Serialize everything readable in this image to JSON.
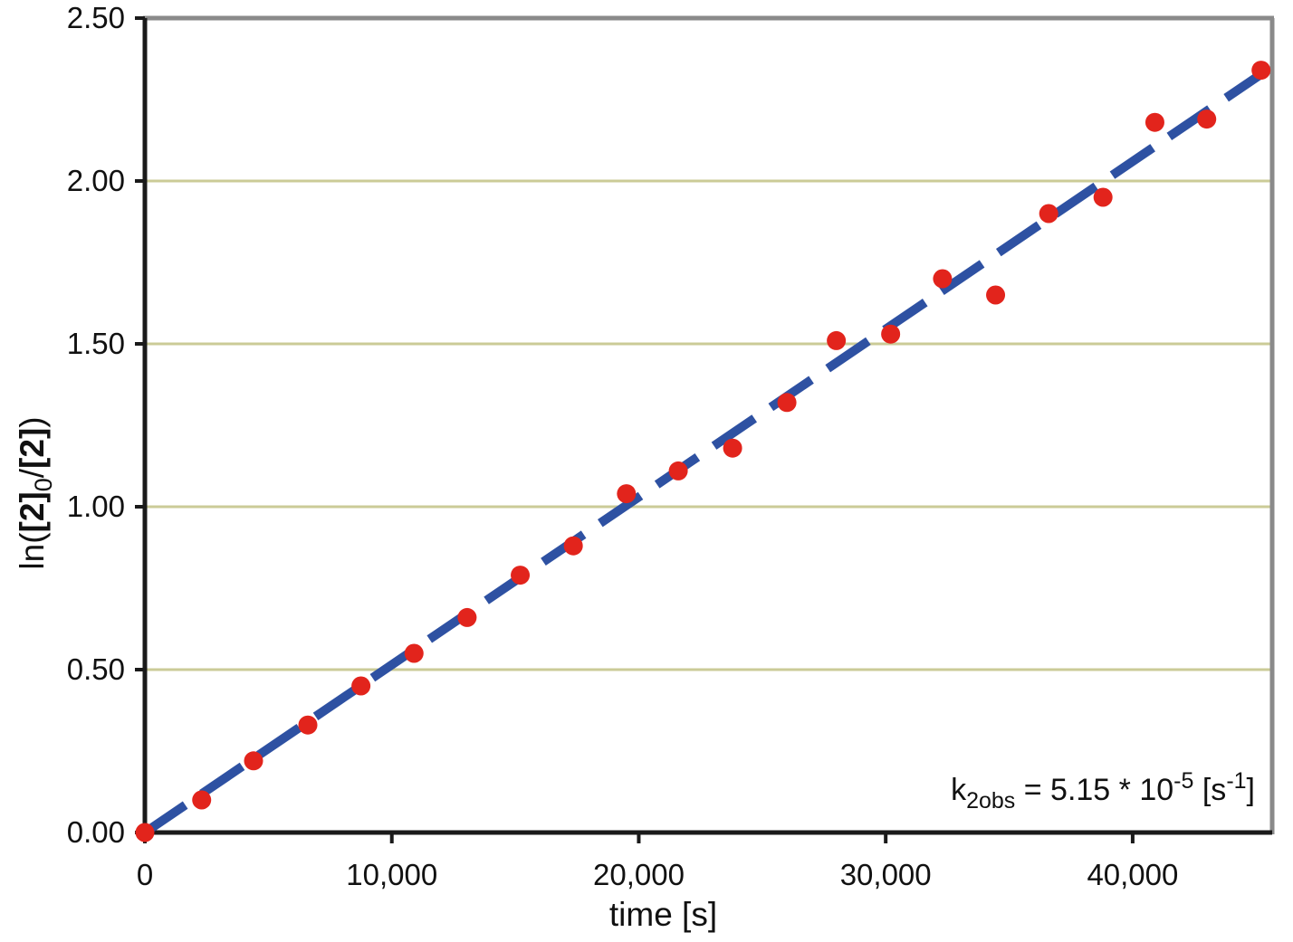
{
  "figure": {
    "background": "#ffffff",
    "description": "First-order kinetics plot of ln([2]0/[2]) versus time"
  },
  "chart_data": {
    "type": "scatter",
    "title": "",
    "xlabel": "time [s]",
    "ylabel": "ln([2]0/[2])",
    "ylabel_segments": [
      {
        "t": "ln("
      },
      {
        "t": "[2]",
        "bold": true
      },
      {
        "t": "0",
        "sub": true
      },
      {
        "t": "/"
      },
      {
        "t": "[2]",
        "bold": true
      },
      {
        "t": ")"
      }
    ],
    "xlim": [
      0,
      45650
    ],
    "ylim": [
      0.0,
      2.5
    ],
    "x_ticks": [
      {
        "value": 0,
        "label": "0"
      },
      {
        "value": 10000,
        "label": "10,000"
      },
      {
        "value": 20000,
        "label": "20,000"
      },
      {
        "value": 30000,
        "label": "30,000"
      },
      {
        "value": 40000,
        "label": "40,000"
      }
    ],
    "y_ticks": [
      {
        "value": 0.0,
        "label": "0.00"
      },
      {
        "value": 0.5,
        "label": "0.50"
      },
      {
        "value": 1.0,
        "label": "1.00"
      },
      {
        "value": 1.5,
        "label": "1.50"
      },
      {
        "value": 2.0,
        "label": "2.00"
      },
      {
        "value": 2.5,
        "label": "2.50"
      }
    ],
    "grid_values": [
      0.5,
      1.0,
      1.5,
      2.0
    ],
    "grid_on": true,
    "legend": null,
    "series": [
      {
        "name": "observed ln([2]0/[2])",
        "marker": "circle",
        "points": [
          [
            0,
            0.0
          ],
          [
            2300,
            0.1
          ],
          [
            4400,
            0.22
          ],
          [
            6600,
            0.33
          ],
          [
            8750,
            0.45
          ],
          [
            10900,
            0.55
          ],
          [
            13050,
            0.66
          ],
          [
            15200,
            0.79
          ],
          [
            17350,
            0.88
          ],
          [
            19500,
            1.04
          ],
          [
            21600,
            1.11
          ],
          [
            23800,
            1.18
          ],
          [
            26000,
            1.32
          ],
          [
            28000,
            1.51
          ],
          [
            30200,
            1.53
          ],
          [
            32300,
            1.7
          ],
          [
            34450,
            1.65
          ],
          [
            36600,
            1.9
          ],
          [
            38800,
            1.95
          ],
          [
            40900,
            2.18
          ],
          [
            43000,
            2.19
          ],
          [
            45200,
            2.34
          ]
        ]
      }
    ],
    "trendline": {
      "style": "dashed",
      "slope_per_s": 5.15e-05,
      "x_start": 0,
      "x_end": 45300
    },
    "annotation": {
      "text": "k2obs = 5.15 * 10-5 [s-1]",
      "segments": [
        {
          "t": "k"
        },
        {
          "t": "2obs",
          "sub": true
        },
        {
          "t": " = 5.15 * 10"
        },
        {
          "t": "-5",
          "sup": true
        },
        {
          "t": " [s"
        },
        {
          "t": "-1",
          "sup": true
        },
        {
          "t": "]"
        }
      ]
    },
    "colors": {
      "point": "#e2241c",
      "trend": "#2e51a2",
      "grid": "#cbcb97",
      "axis": "#1a1a1a",
      "border": "#8a8a8a",
      "text": "#111111"
    }
  }
}
